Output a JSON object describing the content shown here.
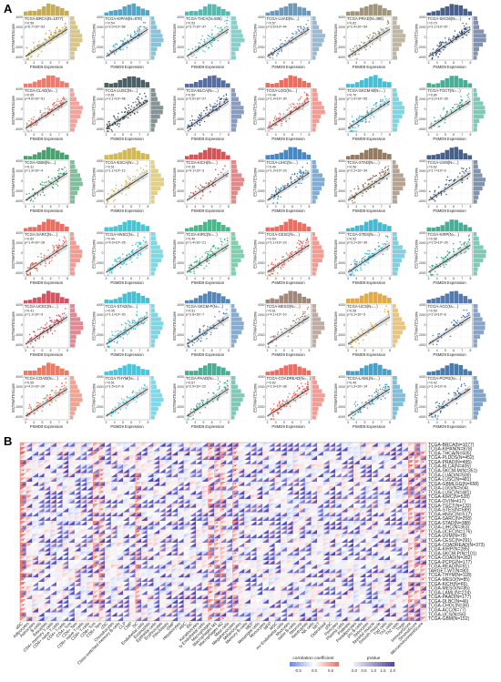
{
  "figure": {
    "panel_a_label": "A",
    "panel_b_label": "B"
  },
  "chart_data": [
    {
      "type": "scatter",
      "panel": "A",
      "xlabel": "PSMD9 Expression",
      "ylabel": "ESTIMATEScore",
      "yticks": [
        "4000",
        "2000",
        "0",
        "-2000",
        "-4000"
      ],
      "xticks": [
        "3",
        "4",
        "5",
        "6",
        "7",
        "8"
      ],
      "subplots": [
        {
          "title": "TCGA-BRCA(N=1077)",
          "r": "r=0.56",
          "p": "p=6.7×10^-93",
          "color": "#b8962e",
          "n": 90
        },
        {
          "title": "TCGA-KIPAN(N=878)",
          "r": "r=0.54",
          "p": "p=2.0×10^-68",
          "color": "#2a8fb8",
          "n": 80
        },
        {
          "title": "TCGA-THCA(N=505)",
          "r": "r=0.53",
          "p": "p=3.7×10^-37",
          "color": "#2ea89e",
          "n": 80
        },
        {
          "title": "TCGA-LUAD(N=...)",
          "r": "r=0.57",
          "p": "p=3.5×10^-44",
          "color": "#4a7fa8",
          "n": 75
        },
        {
          "title": "TCGA-PRAD(N=495)",
          "r": "r=0.62",
          "p": "p=2.4×10^-54",
          "color": "#8a7a5a",
          "n": 70
        },
        {
          "title": "TCGA-SKCM(N=...)",
          "r": "r=0.70",
          "p": "p=1.1×10^-67",
          "color": "#1e3a6e",
          "n": 90
        },
        {
          "title": "TCGA-CLAD(N=...)",
          "r": "r=0.65",
          "p": "p=4.6×10^-51",
          "color": "#e85a4a",
          "n": 90
        },
        {
          "title": "TCGA-LUSC(N=...)",
          "r": "r=0.61",
          "p": "p=2.1×10^-48",
          "color": "#1f3a40",
          "n": 90
        },
        {
          "title": "TCGA-BLCA(N=...)",
          "r": "r=0.50",
          "p": "p=2.6×10^-27",
          "color": "#2c4a8a",
          "n": 90
        },
        {
          "title": "TCGA-LGG(N=...)",
          "r": "r=0.48",
          "p": "p=1.4×10^-30",
          "color": "#e84a3a",
          "n": 80
        },
        {
          "title": "TCGA-SKCM-M(N=...)",
          "r": "r=0.70",
          "p": "p=1.0×10^-55",
          "color": "#1ab0c8",
          "n": 90
        },
        {
          "title": "TCGA-TGCT(N=...)",
          "r": "r=0.80",
          "p": "p=3.2×10^-35",
          "color": "#1a9a7a",
          "n": 60
        },
        {
          "title": "TCGA-GBM(N=...)",
          "r": "r=0.31",
          "p": "p=1.3×10^-4",
          "color": "#1a8a4a",
          "n": 60
        },
        {
          "title": "TCGA-ESCA(N=...)",
          "r": "r=0.51",
          "p": "p=1.1×10^-12",
          "color": "#c8a82a",
          "n": 60
        },
        {
          "title": "TCGA-KICH(N=...)",
          "r": "r=0.35",
          "p": "p=4.1×10^-3",
          "color": "#c82a2a",
          "n": 40
        },
        {
          "title": "TCGA-LIHC(N=...)",
          "r": "r=0.49",
          "p": "p=1.3×10^-23",
          "color": "#1a6ab0",
          "n": 80
        },
        {
          "title": "TCGA-STAD(N=...)",
          "r": "r=0.56",
          "p": "p=2.2×10^-34",
          "color": "#7a5a3a",
          "n": 80
        },
        {
          "title": "TCGA-UVM(N=...)",
          "r": "r=0.62",
          "p": "p=1.7×10^-9",
          "color": "#1a3a6a",
          "n": 50
        },
        {
          "title": "TCGA-SARC(N=...)",
          "r": "r=0.62",
          "p": "p=1.4×10^-28",
          "color": "#e84a3a",
          "n": 80
        },
        {
          "title": "TCGA-HNSC(N=...)",
          "r": "r=0.44",
          "p": "p=4.3×10^-26",
          "color": "#1ab8c8",
          "n": 90
        },
        {
          "title": "TCGA-KIRC(N=...)",
          "r": "r=0.40",
          "p": "p=1.4×10^-21",
          "color": "#1aa86a",
          "n": 80
        },
        {
          "title": "TCGA-CESC(N=...)",
          "r": "r=0.54",
          "p": "p=1.1×10^-23",
          "color": "#e84a3a",
          "n": 80
        },
        {
          "title": "TCGA-STES(N=...)",
          "r": "r=0.52",
          "p": "p=3.2×10^-39",
          "color": "#1aa8c8",
          "n": 90
        },
        {
          "title": "TCGA-KIRP(N=...)",
          "r": "r=0.58",
          "p": "p=2.5×10^-26",
          "color": "#1a9a7a",
          "n": 80
        },
        {
          "title": "TCGA-UCEC(N=...)",
          "r": "r=0.41",
          "p": "p=1.1×10^-9",
          "color": "#c82a3a",
          "n": 80
        },
        {
          "title": "TCGA-STAD(N=...)",
          "r": "r=0.45",
          "p": "p=1.1×10^-20",
          "color": "#1ab0c8",
          "n": 90
        },
        {
          "title": "TCGA-SKCM-P(N=...)",
          "r": "r=0.51",
          "p": "p=2.8×10^-7",
          "color": "#2a6aa8",
          "n": 70
        },
        {
          "title": "TCGA-MESO(N=...)",
          "r": "r=0.61",
          "p": "p=4.1×10^-10",
          "color": "#8a6a5a",
          "n": 50
        },
        {
          "title": "TCGA-UCS(N=...)",
          "r": "r=0.56",
          "p": "p=3.1×10^-5",
          "color": "#d8961a",
          "n": 40
        },
        {
          "title": "TCGA-ACC(N=...)",
          "r": "r=0.59",
          "p": "p=2.3×10^-8",
          "color": "#2a5a9a",
          "n": 40
        },
        {
          "title": "TCGA-COAD(N=...)",
          "r": "r=0.55",
          "p": "p=4.2×10^-20",
          "color": "#e85a3a",
          "n": 80
        },
        {
          "title": "TCGA-THYM(N=...)",
          "r": "r=0.51",
          "p": "p=1.5×10^-8",
          "color": "#1ab8d8",
          "n": 50
        },
        {
          "title": "TCGA-PAAD(N=...)",
          "r": "r=0.67",
          "p": "p=2.9×10^-22",
          "color": "#1a9a7a",
          "n": 70
        },
        {
          "title": "TCGA-COADREAD(N=...)",
          "r": "r=0.62",
          "p": "p=2.9×10^-38",
          "color": "#e84a3a",
          "n": 90
        },
        {
          "title": "TCGA-LAML(N=...)",
          "r": "r=0.49",
          "p": "p=1.3×10^-14",
          "color": "#1a8ab8",
          "n": 70
        },
        {
          "title": "TCGA-PCPG(N=...)",
          "r": "r=0.42",
          "p": "p=1.3×10^-8",
          "color": "#1a5a9a",
          "n": 60
        }
      ]
    },
    {
      "type": "heatmap",
      "panel": "B",
      "rows": [
        "TCGA-BRCA(N=1077)",
        "TCGA-KIPAN(N=878)",
        "TCGA-THCA(N=505)",
        "TCGA-PLDDS(N=452)",
        "TCGA-PRAD(N=495)",
        "TCGA-BLCA(N=405)",
        "TCGA-SKCM-M(N=351)",
        "TCGA-LUAD(N=500)",
        "TCGA-LUSC(N=481)",
        "TCGA-GBMLGG(N=658)",
        "TCGA-LGG(N=504)",
        "TCGA-LUSC(N=481)",
        "TCGA-KIRC(N=528)",
        "TCGA-OV(N=417)",
        "TCGA-TGCT(N=132)",
        "TCGA-STES(N=589)",
        "TCGA-HNSC(N=517)",
        "TCGA-SARC(N=258)",
        "TCGA-STAD(N=388)",
        "TCGA-LIHC(N=363)",
        "TCGA-UCEC(N=176)",
        "TCGA-UVM(N=79)",
        "TCGA-CESC(N=291)",
        "TCGA-COADREAD(N=373)",
        "TCGA-KIRP(N=285)",
        "TCGA-SKCM-P(N=101)",
        "TCGA-COAD(N=282)",
        "TCGA-PCPG(N=177)",
        "TCGA-READ(N=91)",
        "TARGET-WT(N=80)",
        "TCGA-THYM(N=118)",
        "TCGA-MESO(N=85)",
        "TCGA-KICH(N=65)",
        "TCGA-MESO(N=85)",
        "TCGA-LAML(N=224)",
        "TCGA-PAAD(N=177)",
        "TCGA-DLBC(N=46)",
        "TCGA-CHOL(N=36)",
        "TCGA-ACC(N=77)",
        "TCGA-UCS(N=56)",
        "TCGA-GBM(N=152)"
      ],
      "columns": [
        "aDC",
        "Adipocytes",
        "Astrocytes",
        "B-cells",
        "Basophils",
        "CD4+ memory T-cells",
        "CD4+ naive T-cells",
        "CD4+ T-cells",
        "CD4+ Tcm",
        "CD4+ Tem",
        "CD8+ naive T-cells",
        "CD8+ T-cells",
        "CD8+ Tcm",
        "CD8+ Tem",
        "cDC",
        "Chondrocytes",
        "Class-switched memory B-cells",
        "CLP",
        "CMP",
        "DC",
        "Endothelial cells",
        "Eosinophils",
        "Epithelial cells",
        "Erythrocytes",
        "Fibroblasts",
        "GMP",
        "Hepatocytes",
        "HSC",
        "iDC",
        "Keratinocytes",
        "ly Endothelial cells",
        "Macrophages",
        "Macrophages M1",
        "Macrophages M2",
        "Mast cells",
        "Megakaryocytes",
        "Melanocytes",
        "Memory B-cells",
        "MEP",
        "Mesangial cells",
        "Monocytes",
        "MPP",
        "MSC",
        "mv Endothelial cells",
        "Myocytes",
        "naive B-cells",
        "Neurons",
        "Neutrophils",
        "NK cells",
        "NKT",
        "Osteoblast",
        "pDC",
        "Pericytes",
        "Plasma cells",
        "Platelets",
        "Preadipocytes",
        "pro B-cells",
        "Sebocytes",
        "Skeletal muscle",
        "Smooth muscle",
        "Tgd cells",
        "Th1 cells",
        "Th2 cells",
        "Tregs",
        "ImmuneScore",
        "StromaScore",
        "MicroenvironmentScore"
      ],
      "legend": {
        "correlation_title": "correlation coefficient",
        "correlation_ticks": [
          "-0.5",
          "0.0",
          "0.5"
        ],
        "pvalue_title": "pValue",
        "pvalue_ticks": [
          "0.0",
          "0.5",
          "1.0",
          "1.5",
          "2.0"
        ]
      }
    }
  ]
}
